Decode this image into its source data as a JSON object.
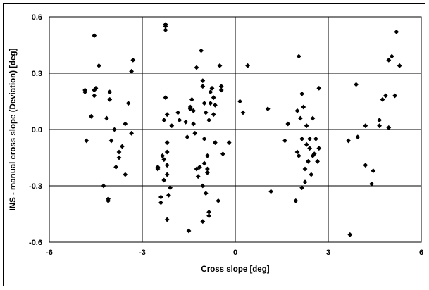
{
  "chart_data": {
    "type": "scatter",
    "title": "",
    "xlabel": "Cross slope [deg]",
    "ylabel": "INS - manual cross slope (Deviation) [deg]",
    "xlim": [
      -6,
      6
    ],
    "ylim": [
      -0.6,
      0.6
    ],
    "xticks": [
      "-6",
      "-3",
      "0",
      "3",
      "6"
    ],
    "yticks": [
      "0.6",
      "0.3",
      "0.0",
      "-0.3",
      "-0.6"
    ],
    "xtick_values": [
      -6,
      -3,
      0,
      3,
      6
    ],
    "ytick_values": [
      0.6,
      0.3,
      0.0,
      -0.3,
      -0.6
    ],
    "grid": true,
    "marker": "diamond",
    "marker_color": "#000000",
    "series": [
      {
        "points": [
          [
            -4.85,
            0.21
          ],
          [
            -4.85,
            0.2
          ],
          [
            -4.8,
            -0.06
          ],
          [
            -4.55,
            0.5
          ],
          [
            -4.5,
            0.22
          ],
          [
            -4.55,
            0.18
          ],
          [
            -4.4,
            0.34
          ],
          [
            -4.25,
            -0.3
          ],
          [
            -4.1,
            -0.38
          ],
          [
            -4.1,
            -0.37
          ],
          [
            -4.05,
            0.2
          ],
          [
            -4.05,
            0.16
          ],
          [
            -4.0,
            -0.06
          ],
          [
            -3.9,
            0.0
          ],
          [
            -3.85,
            -0.2
          ],
          [
            -3.75,
            -0.12
          ],
          [
            -3.75,
            -0.15
          ],
          [
            -3.65,
            -0.09
          ],
          [
            -3.55,
            0.03
          ],
          [
            -3.55,
            -0.24
          ],
          [
            -3.45,
            0.14
          ],
          [
            -3.35,
            0.31
          ],
          [
            -3.3,
            0.37
          ],
          [
            -3.35,
            -0.02
          ],
          [
            -4.65,
            0.07
          ],
          [
            -4.55,
            0.21
          ],
          [
            -4.15,
            0.06
          ],
          [
            -2.5,
            -0.2
          ],
          [
            -2.5,
            -0.21
          ],
          [
            -2.4,
            -0.39
          ],
          [
            -2.4,
            -0.36
          ],
          [
            -2.3,
            -0.27
          ],
          [
            -2.3,
            0.05
          ],
          [
            -2.25,
            0.56
          ],
          [
            -2.25,
            0.55
          ],
          [
            -2.25,
            0.53
          ],
          [
            -2.25,
            0.17
          ],
          [
            -2.2,
            0.08
          ],
          [
            -2.2,
            -0.07
          ],
          [
            -2.2,
            -0.12
          ],
          [
            -2.2,
            -0.19
          ],
          [
            -2.2,
            -0.24
          ],
          [
            -2.2,
            -0.48
          ],
          [
            -2.15,
            -0.35
          ],
          [
            -2.1,
            -0.31
          ],
          [
            -2.05,
            0.02
          ],
          [
            -2.3,
            -0.16
          ],
          [
            -2.35,
            -0.14
          ],
          [
            -1.85,
            0.09
          ],
          [
            -1.6,
            0.04
          ],
          [
            -1.55,
            -0.04
          ],
          [
            -1.5,
            -0.54
          ],
          [
            -1.45,
            0.11
          ],
          [
            -1.45,
            0.12
          ],
          [
            -1.4,
            0.16
          ],
          [
            -1.35,
            0.03
          ],
          [
            -1.35,
            0.1
          ],
          [
            -1.3,
            -0.02
          ],
          [
            -1.25,
            0.33
          ],
          [
            -1.25,
            -0.21
          ],
          [
            -1.2,
            -0.25
          ],
          [
            -1.15,
            -0.2
          ],
          [
            -1.1,
            0.42
          ],
          [
            -1.05,
            0.26
          ],
          [
            -1.05,
            0.23
          ],
          [
            -1.05,
            -0.3
          ],
          [
            -1.05,
            -0.49
          ],
          [
            -1.0,
            -0.18
          ],
          [
            -1.0,
            0.14
          ],
          [
            -1.0,
            -0.05
          ],
          [
            -0.95,
            0.09
          ],
          [
            -0.95,
            -0.34
          ],
          [
            -0.9,
            -0.14
          ],
          [
            -0.9,
            -0.21
          ],
          [
            -0.9,
            -0.23
          ],
          [
            -0.85,
            -0.44
          ],
          [
            -0.85,
            -0.46
          ],
          [
            -0.85,
            0.05
          ],
          [
            -0.8,
            0.2
          ],
          [
            -0.8,
            0.14
          ],
          [
            -0.75,
            0.22
          ],
          [
            -0.7,
            0.17
          ],
          [
            -0.7,
            0.08
          ],
          [
            -0.65,
            0.13
          ],
          [
            -0.65,
            -0.07
          ],
          [
            -0.55,
            -0.38
          ],
          [
            -0.5,
            0.34
          ],
          [
            -0.45,
            0.21
          ],
          [
            -0.45,
            0.23
          ],
          [
            -0.4,
            -0.13
          ],
          [
            -0.2,
            -0.07
          ],
          [
            -1.8,
            0.05
          ],
          [
            0.15,
            0.15
          ],
          [
            0.25,
            0.09
          ],
          [
            0.4,
            0.34
          ],
          [
            1.05,
            0.11
          ],
          [
            1.15,
            -0.33
          ],
          [
            1.6,
            -0.06
          ],
          [
            1.7,
            0.03
          ],
          [
            1.95,
            -0.38
          ],
          [
            2.0,
            -0.12
          ],
          [
            2.0,
            0.1
          ],
          [
            2.05,
            0.39
          ],
          [
            2.1,
            0.06
          ],
          [
            2.15,
            0.19
          ],
          [
            2.15,
            -0.31
          ],
          [
            2.15,
            -0.05
          ],
          [
            2.25,
            -0.28
          ],
          [
            2.25,
            -0.21
          ],
          [
            2.3,
            0.02
          ],
          [
            2.3,
            -0.08
          ],
          [
            2.35,
            -0.17
          ],
          [
            2.4,
            -0.1
          ],
          [
            2.4,
            -0.05
          ],
          [
            2.45,
            -0.24
          ],
          [
            2.5,
            -0.14
          ],
          [
            2.5,
            0.06
          ],
          [
            2.55,
            -0.13
          ],
          [
            2.6,
            -0.05
          ],
          [
            2.65,
            -0.17
          ],
          [
            2.7,
            0.22
          ],
          [
            2.7,
            -0.1
          ],
          [
            2.05,
            -0.14
          ],
          [
            2.2,
            0.12
          ],
          [
            3.65,
            -0.06
          ],
          [
            3.7,
            -0.56
          ],
          [
            3.9,
            0.24
          ],
          [
            3.95,
            -0.04
          ],
          [
            4.2,
            0.02
          ],
          [
            4.2,
            -0.19
          ],
          [
            4.4,
            -0.29
          ],
          [
            4.45,
            -0.22
          ],
          [
            4.65,
            0.05
          ],
          [
            4.65,
            0.02
          ],
          [
            4.75,
            0.16
          ],
          [
            4.85,
            0.18
          ],
          [
            4.95,
            0.37
          ],
          [
            4.95,
            0.01
          ],
          [
            5.15,
            0.18
          ],
          [
            5.2,
            0.52
          ],
          [
            5.3,
            0.34
          ],
          [
            5.05,
            0.39
          ]
        ]
      }
    ]
  }
}
